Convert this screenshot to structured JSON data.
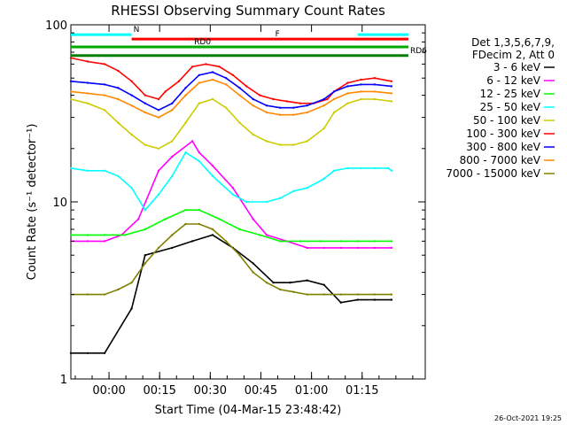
{
  "chart_data": {
    "type": "line",
    "title": "RHESSI Observing Summary Count Rates",
    "xlabel": "Start Time (04-Mar-15 23:48:42)",
    "ylabel": "Count Rate (s⁻¹ detector⁻¹)",
    "yscale": "log",
    "ylim": [
      1,
      100
    ],
    "xlim_minutes": [
      0,
      105
    ],
    "x_ticks": [
      {
        "t": 11.3,
        "label": "00:00"
      },
      {
        "t": 26.3,
        "label": "00:15"
      },
      {
        "t": 41.3,
        "label": "00:30"
      },
      {
        "t": 56.3,
        "label": "00:45"
      },
      {
        "t": 71.3,
        "label": "01:00"
      },
      {
        "t": 86.3,
        "label": "01:15"
      }
    ],
    "y_ticks": [
      {
        "v": 1,
        "label": "1"
      },
      {
        "v": 10,
        "label": "10"
      },
      {
        "v": 100,
        "label": "100"
      }
    ],
    "legend_header": [
      "Det 1,3,5,6,7,9,",
      "FDecim 2, Att 0"
    ],
    "legend_position": "right",
    "footer_date": "26-Oct-2021 19:25",
    "flags": {
      "N": {
        "label": "N",
        "color": "#00ffff",
        "level": 88,
        "segments": [
          [
            0,
            18
          ],
          [
            85,
            100
          ]
        ]
      },
      "F": {
        "label": "F",
        "color": "#ff0000",
        "level": 83,
        "segments": [
          [
            18,
            60
          ],
          [
            60,
            100
          ]
        ]
      },
      "RD0": {
        "label": "RD0",
        "color": "#00aa00",
        "level": 75,
        "segments": [
          [
            0,
            36
          ],
          [
            36,
            100
          ]
        ]
      },
      "RD6": {
        "label": "RD6",
        "color": "#008000",
        "level": 67,
        "segments": [
          [
            0,
            100
          ]
        ]
      }
    },
    "series": [
      {
        "name": "3 - 6 keV",
        "color": "#000000",
        "points": [
          [
            0,
            1.4
          ],
          [
            5,
            1.4
          ],
          [
            10,
            1.4
          ],
          [
            18,
            2.5
          ],
          [
            22,
            5
          ],
          [
            30,
            5.5
          ],
          [
            36,
            6
          ],
          [
            42,
            6.5
          ],
          [
            48,
            5.5
          ],
          [
            54,
            4.5
          ],
          [
            60,
            3.5
          ],
          [
            65,
            3.5
          ],
          [
            70,
            3.6
          ],
          [
            75,
            3.4
          ],
          [
            80,
            2.7
          ],
          [
            85,
            2.8
          ],
          [
            90,
            2.8
          ],
          [
            95,
            2.8
          ]
        ]
      },
      {
        "name": "6 - 12 keV",
        "color": "#ff00ff",
        "points": [
          [
            0,
            6
          ],
          [
            5,
            6
          ],
          [
            10,
            6
          ],
          [
            15,
            6.5
          ],
          [
            20,
            8
          ],
          [
            26,
            15
          ],
          [
            30,
            18
          ],
          [
            36,
            22
          ],
          [
            38,
            19
          ],
          [
            42,
            16
          ],
          [
            48,
            12
          ],
          [
            54,
            8
          ],
          [
            58,
            6.5
          ],
          [
            64,
            6
          ],
          [
            70,
            5.5
          ],
          [
            75,
            5.5
          ],
          [
            80,
            5.5
          ],
          [
            85,
            5.5
          ],
          [
            90,
            5.5
          ],
          [
            95,
            5.5
          ]
        ]
      },
      {
        "name": "12 - 25 keV",
        "color": "#00ff00",
        "points": [
          [
            0,
            6.5
          ],
          [
            5,
            6.5
          ],
          [
            10,
            6.5
          ],
          [
            16,
            6.5
          ],
          [
            22,
            7
          ],
          [
            28,
            8
          ],
          [
            34,
            9
          ],
          [
            38,
            9
          ],
          [
            44,
            8
          ],
          [
            50,
            7
          ],
          [
            56,
            6.5
          ],
          [
            62,
            6
          ],
          [
            68,
            6
          ],
          [
            74,
            6
          ],
          [
            80,
            6
          ],
          [
            85,
            6
          ],
          [
            90,
            6
          ],
          [
            95,
            6
          ]
        ]
      },
      {
        "name": "25 - 50 keV",
        "color": "#00ffff",
        "points": [
          [
            0,
            15.5
          ],
          [
            5,
            15
          ],
          [
            10,
            15
          ],
          [
            14,
            14
          ],
          [
            18,
            12
          ],
          [
            22,
            9
          ],
          [
            26,
            11
          ],
          [
            30,
            14
          ],
          [
            34,
            19
          ],
          [
            38,
            17
          ],
          [
            42,
            14
          ],
          [
            48,
            11
          ],
          [
            52,
            10
          ],
          [
            58,
            10
          ],
          [
            62,
            10.5
          ],
          [
            66,
            11.5
          ],
          [
            70,
            12
          ],
          [
            75,
            13.5
          ],
          [
            78,
            15
          ],
          [
            82,
            15.5
          ],
          [
            86,
            15.5
          ],
          [
            90,
            15.5
          ],
          [
            94,
            15.5
          ],
          [
            95,
            15
          ]
        ]
      },
      {
        "name": "50 - 100 keV",
        "color": "#cccc00",
        "points": [
          [
            0,
            38
          ],
          [
            5,
            36
          ],
          [
            10,
            33
          ],
          [
            14,
            28
          ],
          [
            18,
            24
          ],
          [
            22,
            21
          ],
          [
            26,
            20
          ],
          [
            30,
            22
          ],
          [
            34,
            28
          ],
          [
            38,
            36
          ],
          [
            42,
            38
          ],
          [
            46,
            34
          ],
          [
            50,
            28
          ],
          [
            54,
            24
          ],
          [
            58,
            22
          ],
          [
            62,
            21
          ],
          [
            66,
            21
          ],
          [
            70,
            22
          ],
          [
            75,
            26
          ],
          [
            78,
            32
          ],
          [
            82,
            36
          ],
          [
            86,
            38
          ],
          [
            90,
            38
          ],
          [
            95,
            37
          ]
        ]
      },
      {
        "name": "100 - 300 keV",
        "color": "#ff0000",
        "points": [
          [
            0,
            65
          ],
          [
            5,
            62
          ],
          [
            10,
            60
          ],
          [
            14,
            55
          ],
          [
            18,
            48
          ],
          [
            22,
            40
          ],
          [
            26,
            38
          ],
          [
            28,
            42
          ],
          [
            32,
            48
          ],
          [
            36,
            58
          ],
          [
            40,
            60
          ],
          [
            44,
            58
          ],
          [
            48,
            52
          ],
          [
            52,
            45
          ],
          [
            56,
            40
          ],
          [
            60,
            38
          ],
          [
            64,
            37
          ],
          [
            68,
            36
          ],
          [
            72,
            36
          ],
          [
            76,
            38
          ],
          [
            78,
            42
          ],
          [
            82,
            47
          ],
          [
            86,
            49
          ],
          [
            90,
            50
          ],
          [
            95,
            48
          ]
        ]
      },
      {
        "name": "300 - 800 keV",
        "color": "#0000ff",
        "points": [
          [
            0,
            48
          ],
          [
            5,
            47
          ],
          [
            10,
            46
          ],
          [
            14,
            44
          ],
          [
            18,
            40
          ],
          [
            22,
            36
          ],
          [
            26,
            33
          ],
          [
            30,
            36
          ],
          [
            34,
            44
          ],
          [
            38,
            52
          ],
          [
            42,
            54
          ],
          [
            46,
            50
          ],
          [
            50,
            44
          ],
          [
            54,
            38
          ],
          [
            58,
            35
          ],
          [
            62,
            34
          ],
          [
            66,
            34
          ],
          [
            70,
            35
          ],
          [
            75,
            38
          ],
          [
            78,
            42
          ],
          [
            82,
            45
          ],
          [
            86,
            46
          ],
          [
            90,
            46
          ],
          [
            95,
            45
          ]
        ]
      },
      {
        "name": "800 - 7000 keV",
        "color": "#ff8800",
        "points": [
          [
            0,
            42
          ],
          [
            5,
            41
          ],
          [
            10,
            40
          ],
          [
            14,
            38
          ],
          [
            18,
            35
          ],
          [
            22,
            32
          ],
          [
            26,
            30
          ],
          [
            30,
            33
          ],
          [
            34,
            40
          ],
          [
            38,
            47
          ],
          [
            42,
            49
          ],
          [
            46,
            46
          ],
          [
            50,
            40
          ],
          [
            54,
            35
          ],
          [
            58,
            32
          ],
          [
            62,
            31
          ],
          [
            66,
            31
          ],
          [
            70,
            32
          ],
          [
            75,
            35
          ],
          [
            78,
            38
          ],
          [
            82,
            41
          ],
          [
            86,
            42
          ],
          [
            90,
            42
          ],
          [
            95,
            41
          ]
        ]
      },
      {
        "name": "7000 - 15000 keV",
        "color": "#808000",
        "points": [
          [
            0,
            3
          ],
          [
            5,
            3
          ],
          [
            10,
            3
          ],
          [
            14,
            3.2
          ],
          [
            18,
            3.5
          ],
          [
            22,
            4.5
          ],
          [
            26,
            5.5
          ],
          [
            30,
            6.5
          ],
          [
            34,
            7.5
          ],
          [
            38,
            7.5
          ],
          [
            42,
            7
          ],
          [
            46,
            6
          ],
          [
            50,
            5
          ],
          [
            54,
            4
          ],
          [
            58,
            3.5
          ],
          [
            62,
            3.2
          ],
          [
            66,
            3.1
          ],
          [
            70,
            3
          ],
          [
            75,
            3
          ],
          [
            80,
            3
          ],
          [
            85,
            3
          ],
          [
            90,
            3
          ],
          [
            95,
            3
          ]
        ]
      }
    ]
  }
}
